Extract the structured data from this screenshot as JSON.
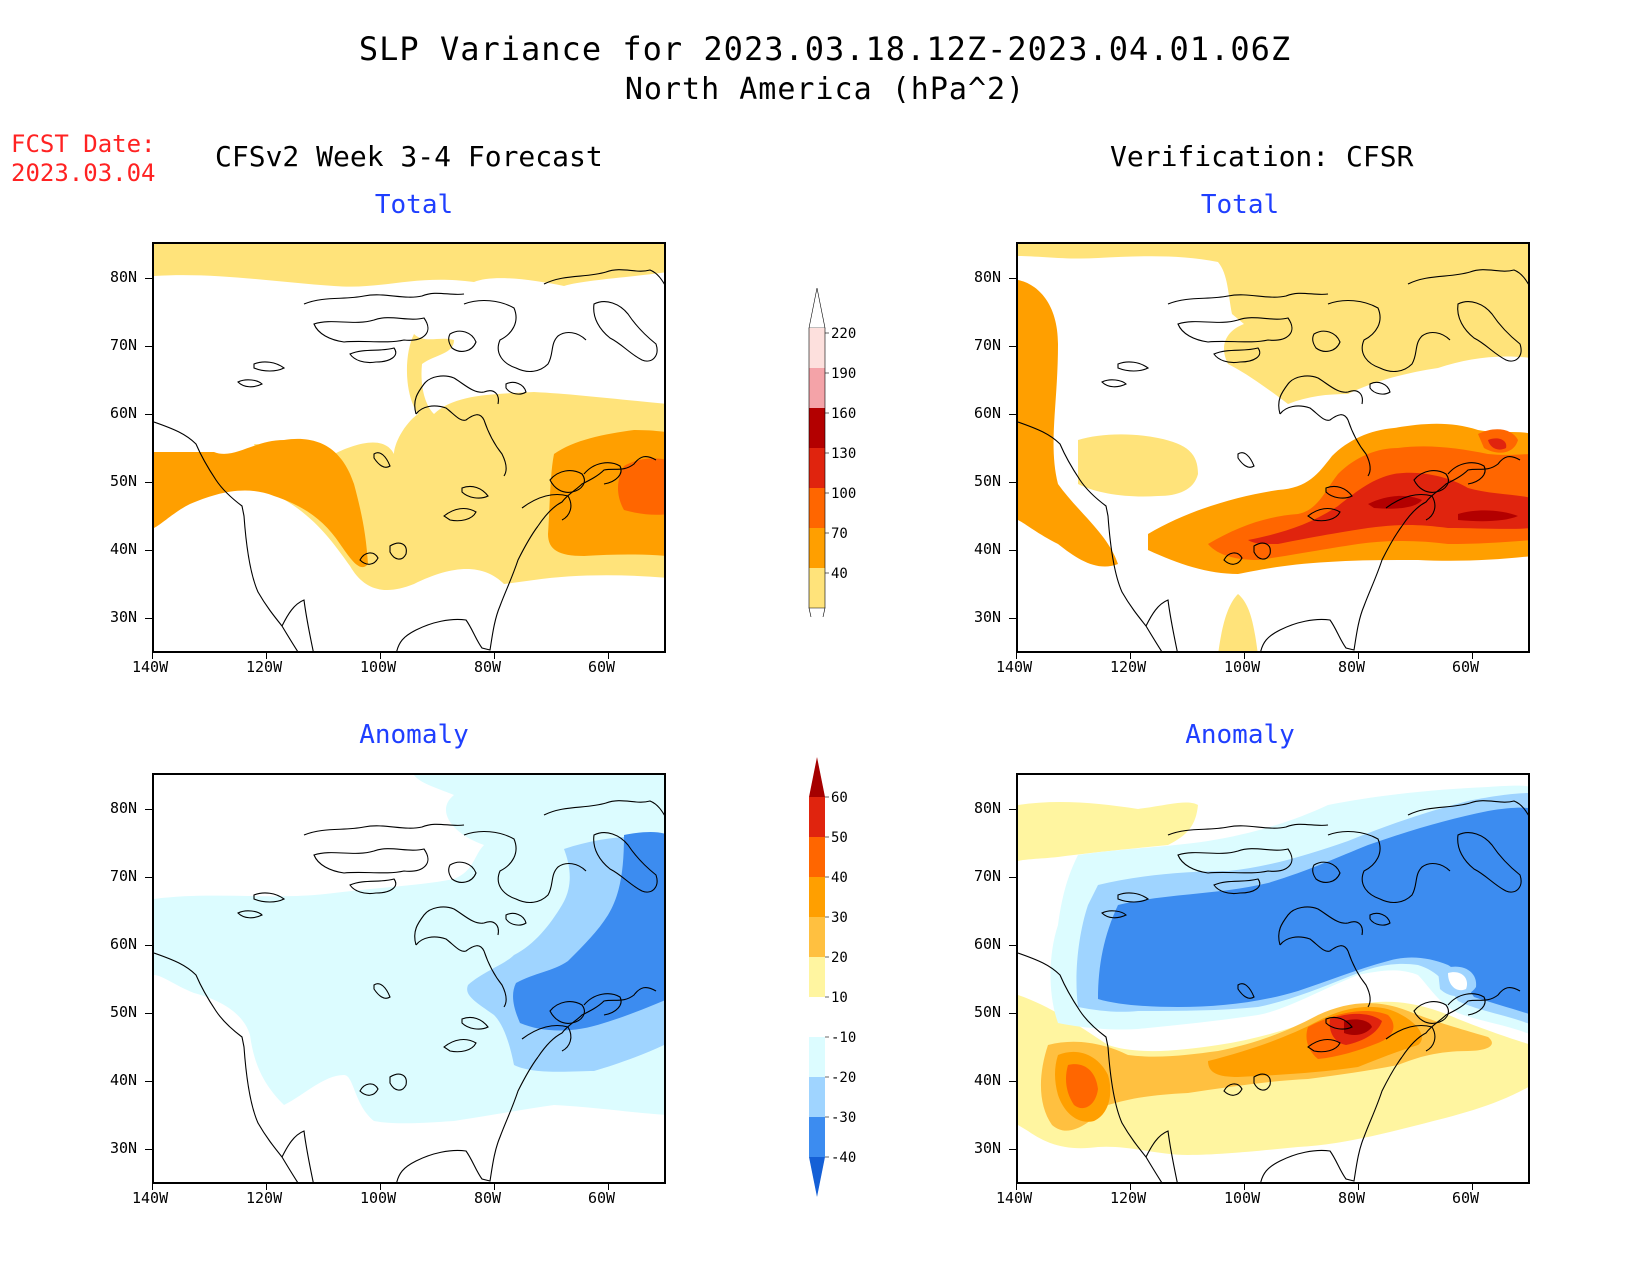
{
  "header": {
    "title": "SLP Variance for 2023.03.18.12Z-2023.04.01.06Z",
    "subtitle": "North America (hPa^2)",
    "fcst_label": "FCST Date:",
    "fcst_date": "2023.03.04"
  },
  "columns": {
    "forecast": "CFSv2 Week 3-4 Forecast",
    "verification": "Verification: CFSR"
  },
  "panels": {
    "total": "Total",
    "anomaly": "Anomaly"
  },
  "axes": {
    "lat_labels": [
      "80N",
      "70N",
      "60N",
      "50N",
      "40N",
      "30N"
    ],
    "lon_labels": [
      "140W",
      "120W",
      "100W",
      "80W",
      "60W"
    ]
  },
  "colorbars": {
    "total": {
      "labels": [
        "220",
        "190",
        "160",
        "130",
        "100",
        "70",
        "40"
      ],
      "colors": [
        "#fde0dd",
        "#f4a3a8",
        "#b30000",
        "#e0240e",
        "#ff6600",
        "#ff9f00",
        "#ffe37a"
      ]
    },
    "anomaly": {
      "labels": [
        "60",
        "50",
        "40",
        "30",
        "20",
        "10",
        "-10",
        "-20",
        "-30",
        "-40"
      ],
      "colors": [
        "#a50000",
        "#e0240e",
        "#ff6600",
        "#ff9f00",
        "#ffc040",
        "#fff5a0",
        "#ffffff",
        "#dcfcff",
        "#9fd4ff",
        "#3c8cf0",
        "#1560d6"
      ]
    }
  }
}
